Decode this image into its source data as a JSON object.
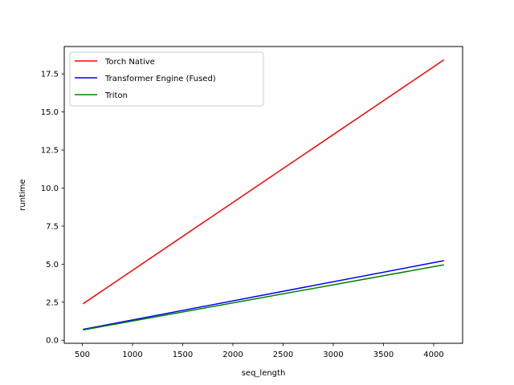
{
  "chart_data": {
    "type": "line",
    "title": "",
    "xlabel": "seq_length",
    "ylabel": "runtime",
    "xlim": [
      320,
      4288
    ],
    "ylim": [
      -0.2,
      19.3
    ],
    "grid": false,
    "legend_position": "top-left",
    "xticks": [
      500,
      1000,
      1500,
      2000,
      2500,
      3000,
      3500,
      4000
    ],
    "xtick_labels": [
      "500",
      "1000",
      "1500",
      "2000",
      "2500",
      "3000",
      "3500",
      "4000"
    ],
    "yticks": [
      0.0,
      2.5,
      5.0,
      7.5,
      10.0,
      12.5,
      15.0,
      17.5
    ],
    "ytick_labels": [
      "0.0",
      "2.5",
      "5.0",
      "7.5",
      "10.0",
      "12.5",
      "15.0",
      "17.5"
    ],
    "x": [
      512,
      4096
    ],
    "series": [
      {
        "name": "Torch Native",
        "color": "#ff0000",
        "values": [
          2.42,
          18.4
        ]
      },
      {
        "name": "Transformer Engine (Fused)",
        "color": "#0000ff",
        "values": [
          0.72,
          5.22
        ]
      },
      {
        "name": "Triton",
        "color": "#008000",
        "values": [
          0.68,
          4.95
        ]
      }
    ]
  }
}
